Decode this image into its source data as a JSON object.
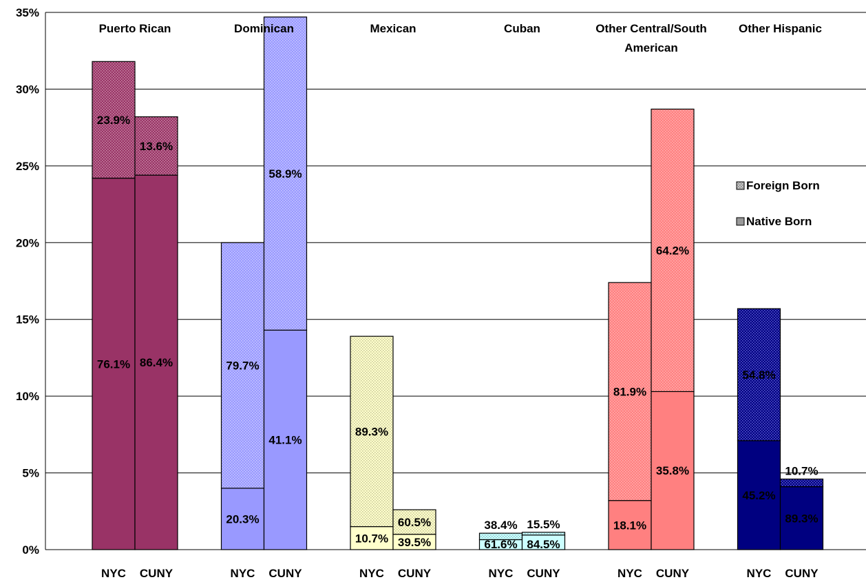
{
  "chart_data": {
    "type": "bar",
    "stacked": true,
    "ylim": [
      0,
      35
    ],
    "y_ticks": [
      "0%",
      "5%",
      "10%",
      "15%",
      "20%",
      "25%",
      "30%",
      "35%"
    ],
    "grid": true,
    "legend_position": "right",
    "legend": [
      {
        "label": "Foreign Born",
        "pattern": "dotted"
      },
      {
        "label": "Native Born",
        "pattern": "solid"
      }
    ],
    "groups": [
      {
        "name_lines": [
          "Puerto Rican"
        ],
        "color": "#993366",
        "pattern_color": "#C78AA6",
        "bars": [
          {
            "label": "NYC",
            "native": 24.2,
            "foreign": 7.6,
            "native_label": "76.1%",
            "foreign_label": "23.9%"
          },
          {
            "label": "CUNY",
            "native": 24.4,
            "foreign": 3.8,
            "native_label": "86.4%",
            "foreign_label": "13.6%"
          }
        ]
      },
      {
        "name_lines": [
          "Dominican"
        ],
        "color": "#9999FF",
        "pattern_color": "#C9C9FF",
        "bars": [
          {
            "label": "NYC",
            "native": 4.0,
            "foreign": 16.0,
            "native_label": "20.3%",
            "foreign_label": "79.7%"
          },
          {
            "label": "CUNY",
            "native": 14.3,
            "foreign": 20.4,
            "native_label": "41.1%",
            "foreign_label": "58.9%"
          }
        ]
      },
      {
        "name_lines": [
          "Mexican"
        ],
        "color": "#FFFFCC",
        "pattern_color": "#C8C89A",
        "bars": [
          {
            "label": "NYC",
            "native": 1.5,
            "foreign": 12.4,
            "native_label": "10.7%",
            "foreign_label": "89.3%"
          },
          {
            "label": "CUNY",
            "native": 1.0,
            "foreign": 1.6,
            "native_label": "39.5%",
            "foreign_label": "60.5%"
          }
        ]
      },
      {
        "name_lines": [
          "Cuban"
        ],
        "color": "#CCFFFF",
        "pattern_color": "#8FC8CC",
        "bars": [
          {
            "label": "NYC",
            "native": 0.65,
            "foreign": 0.42,
            "native_label": "61.6%",
            "foreign_label": "38.4%"
          },
          {
            "label": "CUNY",
            "native": 0.95,
            "foreign": 0.18,
            "native_label": "84.5%",
            "foreign_label": "15.5%"
          }
        ]
      },
      {
        "name_lines": [
          "Other Central/South",
          "American"
        ],
        "color": "#FF8080",
        "pattern_color": "#FFB0B0",
        "bars": [
          {
            "label": "NYC",
            "native": 3.2,
            "foreign": 14.2,
            "native_label": "18.1%",
            "foreign_label": "81.9%"
          },
          {
            "label": "CUNY",
            "native": 10.3,
            "foreign": 18.4,
            "native_label": "35.8%",
            "foreign_label": "64.2%"
          }
        ]
      },
      {
        "name_lines": [
          "Other Hispanic"
        ],
        "color": "#000080",
        "pattern_color": "#5A5AD0",
        "bars": [
          {
            "label": "NYC",
            "native": 7.1,
            "foreign": 8.6,
            "native_label": "45.2%",
            "foreign_label": "54.8%"
          },
          {
            "label": "CUNY",
            "native": 4.1,
            "foreign": 0.5,
            "native_label": "89.3%",
            "foreign_label": "10.7%"
          }
        ]
      }
    ]
  }
}
